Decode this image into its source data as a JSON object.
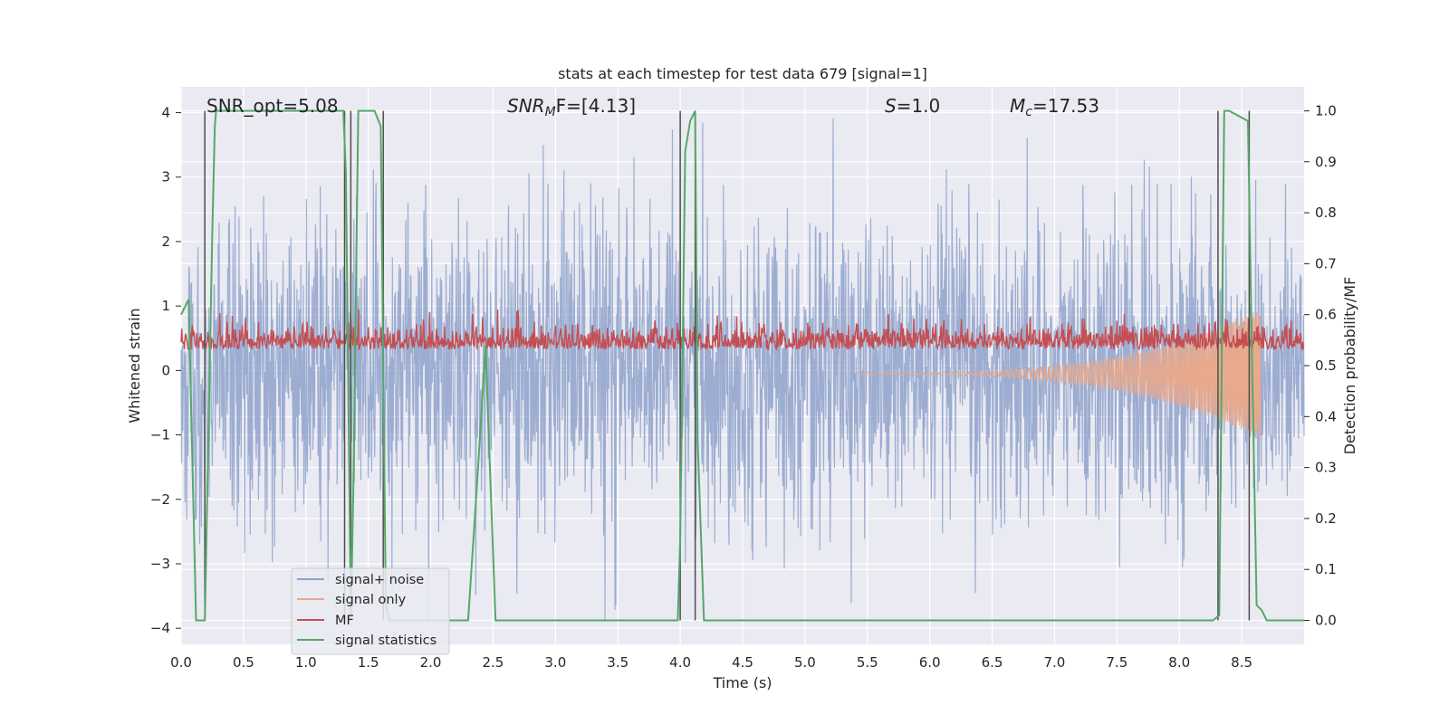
{
  "chart_data": {
    "type": "line",
    "title": "stats at each timestep for test data 679 [signal=1]",
    "xlabel": "Time (s)",
    "ylabel_left": "Whitened strain",
    "ylabel_right": "Detection probability/MF",
    "xlim": [
      0.0,
      9.0
    ],
    "ylim_left": [
      -4.25,
      4.4
    ],
    "ylim_right": [
      -0.047,
      1.047
    ],
    "xticks": [
      "0.0",
      "0.5",
      "1.0",
      "1.5",
      "2.0",
      "2.5",
      "3.0",
      "3.5",
      "4.0",
      "4.5",
      "5.0",
      "5.5",
      "6.0",
      "6.5",
      "7.0",
      "7.5",
      "8.0",
      "8.5"
    ],
    "xtick_values": [
      0.0,
      0.5,
      1.0,
      1.5,
      2.0,
      2.5,
      3.0,
      3.5,
      4.0,
      4.5,
      5.0,
      5.5,
      6.0,
      6.5,
      7.0,
      7.5,
      8.0,
      8.5
    ],
    "yticks_left": [
      "−4",
      "−3",
      "−2",
      "−1",
      "0",
      "1",
      "2",
      "3",
      "4"
    ],
    "ytick_values_left": [
      -4,
      -3,
      -2,
      -1,
      0,
      1,
      2,
      3,
      4
    ],
    "yticks_right": [
      "0.0",
      "0.1",
      "0.2",
      "0.3",
      "0.4",
      "0.5",
      "0.6",
      "0.7",
      "0.8",
      "0.9",
      "1.0"
    ],
    "ytick_values_right": [
      0.0,
      0.1,
      0.2,
      0.3,
      0.4,
      0.5,
      0.6,
      0.7,
      0.8,
      0.9,
      1.0
    ],
    "grid": true,
    "legend_position": "lower-left",
    "annotations": {
      "snr_opt": "SNR_opt=5.08",
      "snr_mf_italic": "SNR",
      "snr_mf_sub": "M",
      "snr_mf_rest": "F=[4.13]",
      "s_italic": "S",
      "s_rest": "=1.0",
      "mc_italic": "M",
      "mc_sub": "c",
      "mc_rest": "=17.53"
    },
    "vertical_markers": [
      0.19,
      1.31,
      1.36,
      1.62,
      4.0,
      4.12,
      8.31,
      8.56
    ],
    "series": [
      {
        "name": "signal+ noise",
        "color": "#8ea2cb",
        "axis": "left",
        "description": "whitened noisy strain, roughly within -3.9 to 4.0"
      },
      {
        "name": "signal only",
        "color": "#e8a98d",
        "axis": "left",
        "description": "chirp rising from ~0 at 5.5 s to about +/-1 near 8.6 s, ends at 8.65 s"
      },
      {
        "name": "MF",
        "color": "#c44e52",
        "axis": "right",
        "description": "matched-filter output fluctuating between ~0.5 and ~0.6"
      },
      {
        "name": "signal statistics",
        "color": "#55a868",
        "axis": "right",
        "x": [
          0.0,
          0.06,
          0.12,
          0.19,
          0.22,
          0.25,
          0.27,
          0.28,
          0.3,
          1.3,
          1.32,
          1.34,
          1.36,
          1.38,
          1.42,
          1.44,
          1.55,
          1.6,
          1.62,
          1.64,
          1.67,
          1.7,
          2.3,
          2.38,
          2.44,
          2.46,
          2.52,
          3.98,
          4.0,
          4.04,
          4.08,
          4.12,
          4.14,
          4.19,
          8.27,
          8.32,
          8.36,
          8.4,
          8.55,
          8.58,
          8.62,
          8.66,
          8.7,
          8.76,
          9.0
        ],
        "y": [
          0.6,
          0.63,
          0.0,
          0.0,
          0.38,
          0.76,
          0.97,
          1.0,
          1.0,
          1.0,
          0.88,
          0.45,
          0.0,
          0.25,
          1.0,
          1.0,
          1.0,
          0.97,
          0.5,
          0.03,
          0.0,
          0.0,
          0.0,
          0.3,
          0.54,
          0.4,
          0.0,
          0.0,
          0.16,
          0.92,
          0.98,
          1.0,
          0.35,
          0.0,
          0.0,
          0.01,
          1.0,
          1.0,
          0.98,
          0.55,
          0.03,
          0.02,
          0.0,
          0.0,
          0.0
        ]
      }
    ]
  }
}
